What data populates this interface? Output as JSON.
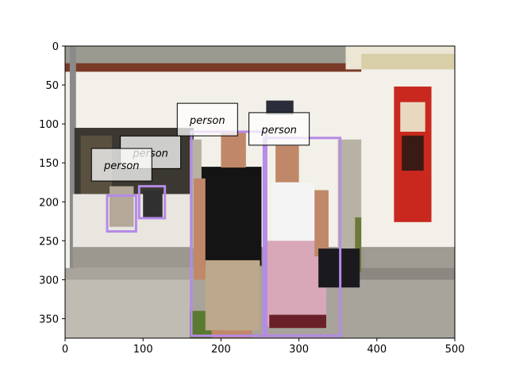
{
  "chart_data": {
    "type": "image-with-detections",
    "image_size": {
      "width": 500,
      "height": 375
    },
    "xlim": [
      0,
      500
    ],
    "ylim": [
      375,
      0
    ],
    "xticks": [
      0,
      100,
      200,
      300,
      400,
      500
    ],
    "yticks": [
      0,
      50,
      100,
      150,
      200,
      250,
      300,
      350
    ],
    "grid": false,
    "box_color": "#b58ae8",
    "detections": [
      {
        "label": "person",
        "x0": 162,
        "y0": 110,
        "x1": 258,
        "y1": 372
      },
      {
        "label": "person",
        "x0": 255,
        "y0": 118,
        "x1": 353,
        "y1": 372
      },
      {
        "label": "person",
        "x0": 95,
        "y0": 180,
        "x1": 128,
        "y1": 221
      },
      {
        "label": "person",
        "x0": 54,
        "y0": 192,
        "x1": 91,
        "y1": 238
      }
    ],
    "label_anchors": [
      {
        "x": 150,
        "y": 100
      },
      {
        "x": 242,
        "y": 112
      },
      {
        "x": 77,
        "y": 142
      },
      {
        "x": 40,
        "y": 158
      }
    ],
    "scene": {
      "sky": "#ffffff",
      "wall": "#f2f0e8",
      "roof": "#9a9a90",
      "trim": "#7a3a28",
      "ground": "#a8a49c",
      "sign_red": "#c8281e",
      "sign_dark": "#2a2c3a",
      "shirt_dark": "#141414",
      "shorts": "#bca88a",
      "skin": "#c08868",
      "skirt": "#d8a8b8",
      "top_white": "#f4f4f4",
      "vegetation": "#6a7a3a"
    }
  }
}
